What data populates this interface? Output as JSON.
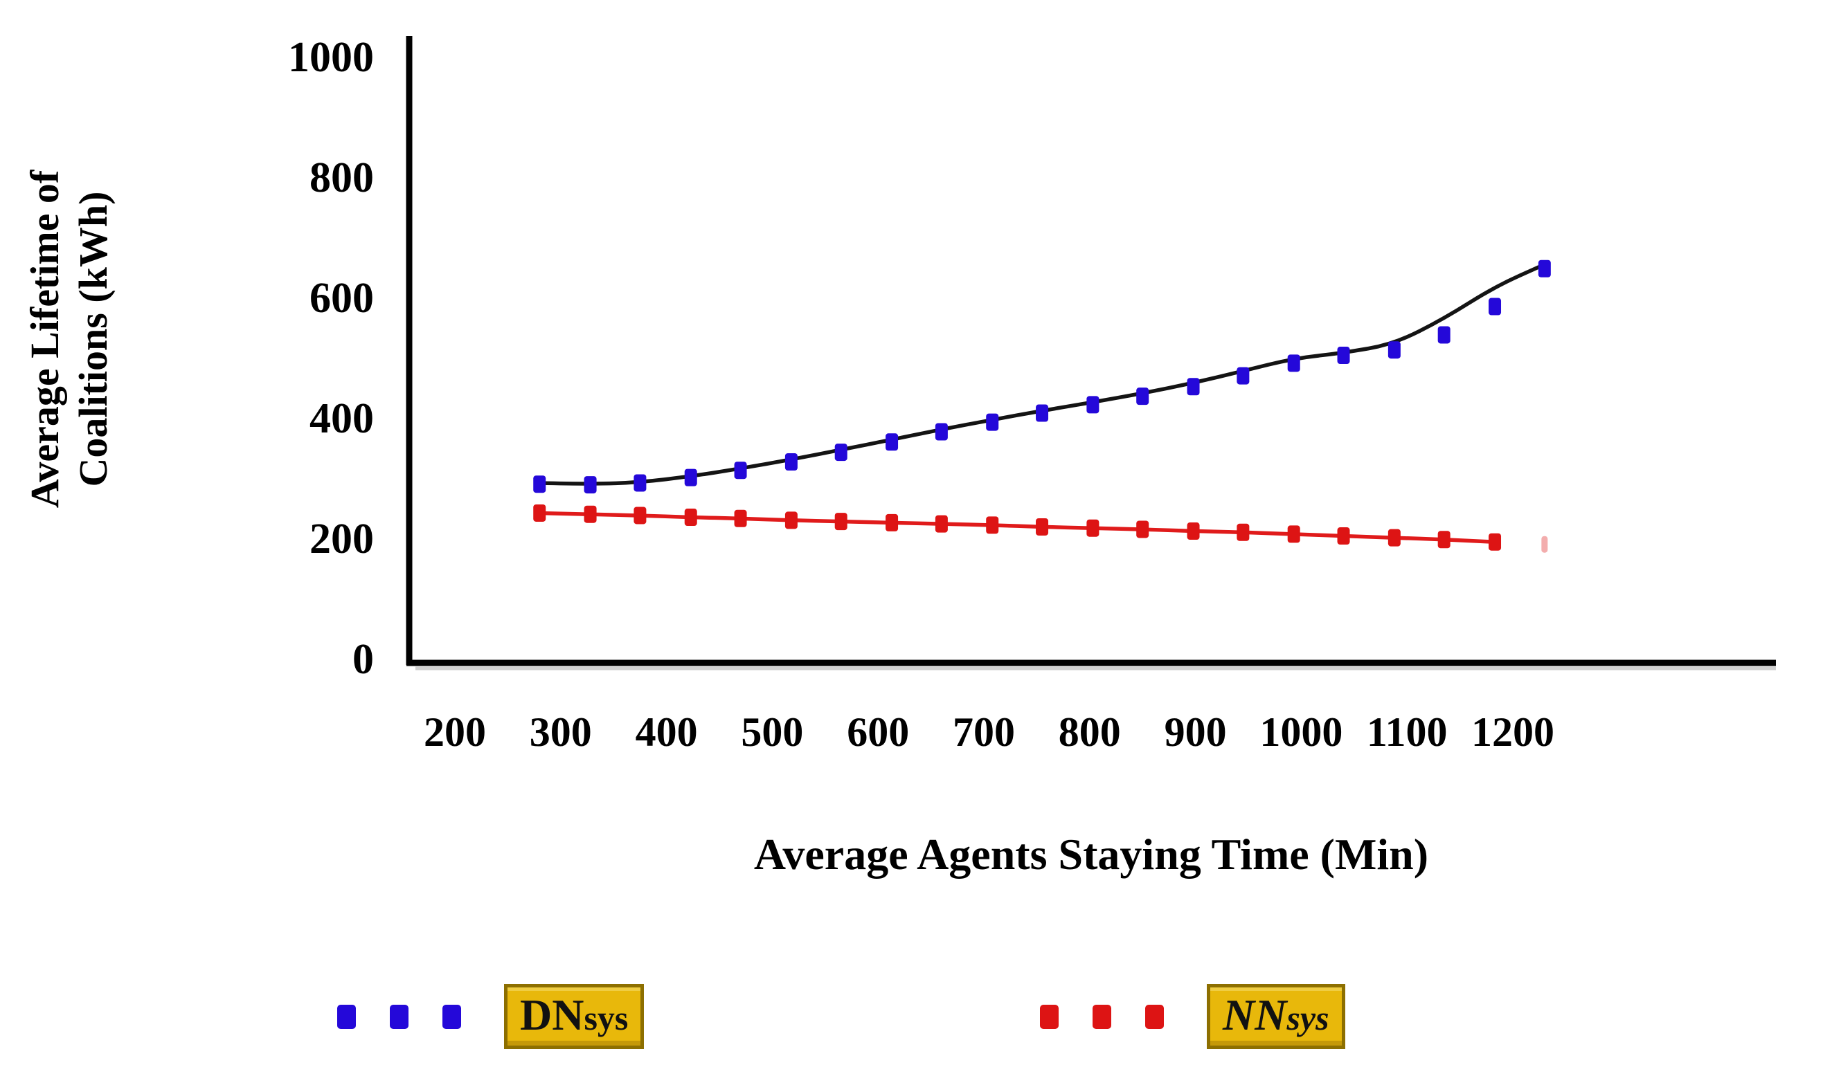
{
  "figure": {
    "background": "#ffffff"
  },
  "axes": {
    "y": {
      "title_line1": "Average Lifetime of",
      "title_line2": "Coalitions (kWh)",
      "tick_labels": [
        "0",
        "200",
        "400",
        "600",
        "800",
        "1000"
      ],
      "tick_values": [
        0,
        200,
        400,
        600,
        800,
        1000
      ]
    },
    "x": {
      "title": "Average Agents Staying Time (Min)",
      "tick_labels": [
        "200",
        "300",
        "400",
        "500",
        "600",
        "700",
        "800",
        "900",
        "1000",
        "1100",
        "1200"
      ],
      "tick_values": [
        200,
        300,
        400,
        500,
        600,
        700,
        800,
        900,
        1000,
        1100,
        1200
      ]
    }
  },
  "legend": {
    "items": [
      {
        "main": "DN",
        "sub": "sys",
        "marker_color": "#2408D9",
        "box_fill": "#E8B80B",
        "box_border": "#8D6F00",
        "italic": false
      },
      {
        "main": "NN",
        "sub": "sys",
        "marker_color": "#DD1414",
        "box_fill": "#E8B80B",
        "box_border": "#8D6F00",
        "italic": true
      }
    ]
  },
  "chart_data": {
    "type": "line",
    "title": "",
    "xlabel": "Average Agents Staying Time (Min)",
    "ylabel": "Average Lifetime of Coalitions (kWh)",
    "xlim": [
      200,
      1250
    ],
    "ylim": [
      0,
      1000
    ],
    "grid": false,
    "legend_position": "bottom",
    "x": [
      280,
      328,
      375,
      423,
      470,
      518,
      565,
      613,
      660,
      708,
      755,
      803,
      850,
      898,
      945,
      993,
      1040,
      1088,
      1135,
      1183,
      1230
    ],
    "series": [
      {
        "name": "DNsys",
        "role": "markers",
        "marker": "square-dot",
        "color": "#2408D9",
        "values": [
          290,
          289,
          292,
          301,
          313,
          327,
          343,
          360,
          377,
          393,
          408,
          422,
          436,
          452,
          470,
          491,
          504,
          513,
          538,
          585,
          648
        ]
      },
      {
        "name": "DNsys trend",
        "role": "trendline",
        "color": "#141414",
        "values": [
          292,
          290,
          293,
          303,
          316,
          331,
          347,
          364,
          381,
          397,
          412,
          426,
          441,
          458,
          478,
          499,
          508,
          523,
          565,
          618,
          655
        ]
      },
      {
        "name": "NNsys",
        "role": "markers",
        "marker": "square-dot",
        "color": "#DD1414",
        "partial_last_marker": true,
        "values": [
          242,
          240,
          238,
          235,
          233,
          230,
          228,
          226,
          224,
          222,
          219,
          217,
          215,
          212,
          210,
          207,
          204,
          201,
          198,
          194,
          190
        ]
      },
      {
        "name": "NNsys trend",
        "role": "trendline",
        "color": "#E01B1B",
        "trim_last": true,
        "values": [
          242,
          240,
          238,
          235,
          233,
          230,
          228,
          226,
          224,
          222,
          219,
          217,
          215,
          212,
          210,
          207,
          204,
          201,
          198,
          194,
          190
        ]
      }
    ]
  }
}
